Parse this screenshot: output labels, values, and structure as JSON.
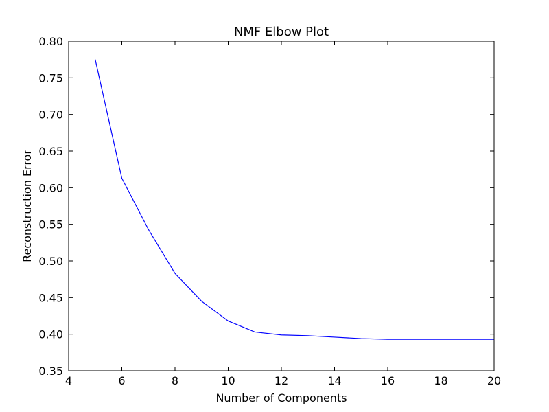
{
  "chart_data": {
    "type": "line",
    "title": "NMF Elbow Plot",
    "xlabel": "Number of Components",
    "ylabel": "Reconstruction Error",
    "xlim": [
      4,
      20
    ],
    "ylim": [
      0.35,
      0.8
    ],
    "x_ticks": [
      4,
      6,
      8,
      10,
      12,
      14,
      16,
      18,
      20
    ],
    "x_tick_labels": [
      "4",
      "6",
      "8",
      "10",
      "12",
      "14",
      "16",
      "18",
      "20"
    ],
    "y_ticks": [
      0.35,
      0.4,
      0.45,
      0.5,
      0.55,
      0.6,
      0.65,
      0.7,
      0.75,
      0.8
    ],
    "y_tick_labels": [
      "0.35",
      "0.40",
      "0.45",
      "0.50",
      "0.55",
      "0.60",
      "0.65",
      "0.70",
      "0.75",
      "0.80"
    ],
    "grid": false,
    "series": [
      {
        "color": "#0000ff",
        "x": [
          5,
          6,
          7,
          8,
          9,
          10,
          11,
          12,
          13,
          14,
          15,
          16,
          17,
          18,
          19,
          20
        ],
        "y": [
          0.775,
          0.613,
          0.543,
          0.483,
          0.445,
          0.418,
          0.403,
          0.399,
          0.398,
          0.396,
          0.394,
          0.393,
          0.393,
          0.393,
          0.393,
          0.393
        ]
      }
    ]
  }
}
